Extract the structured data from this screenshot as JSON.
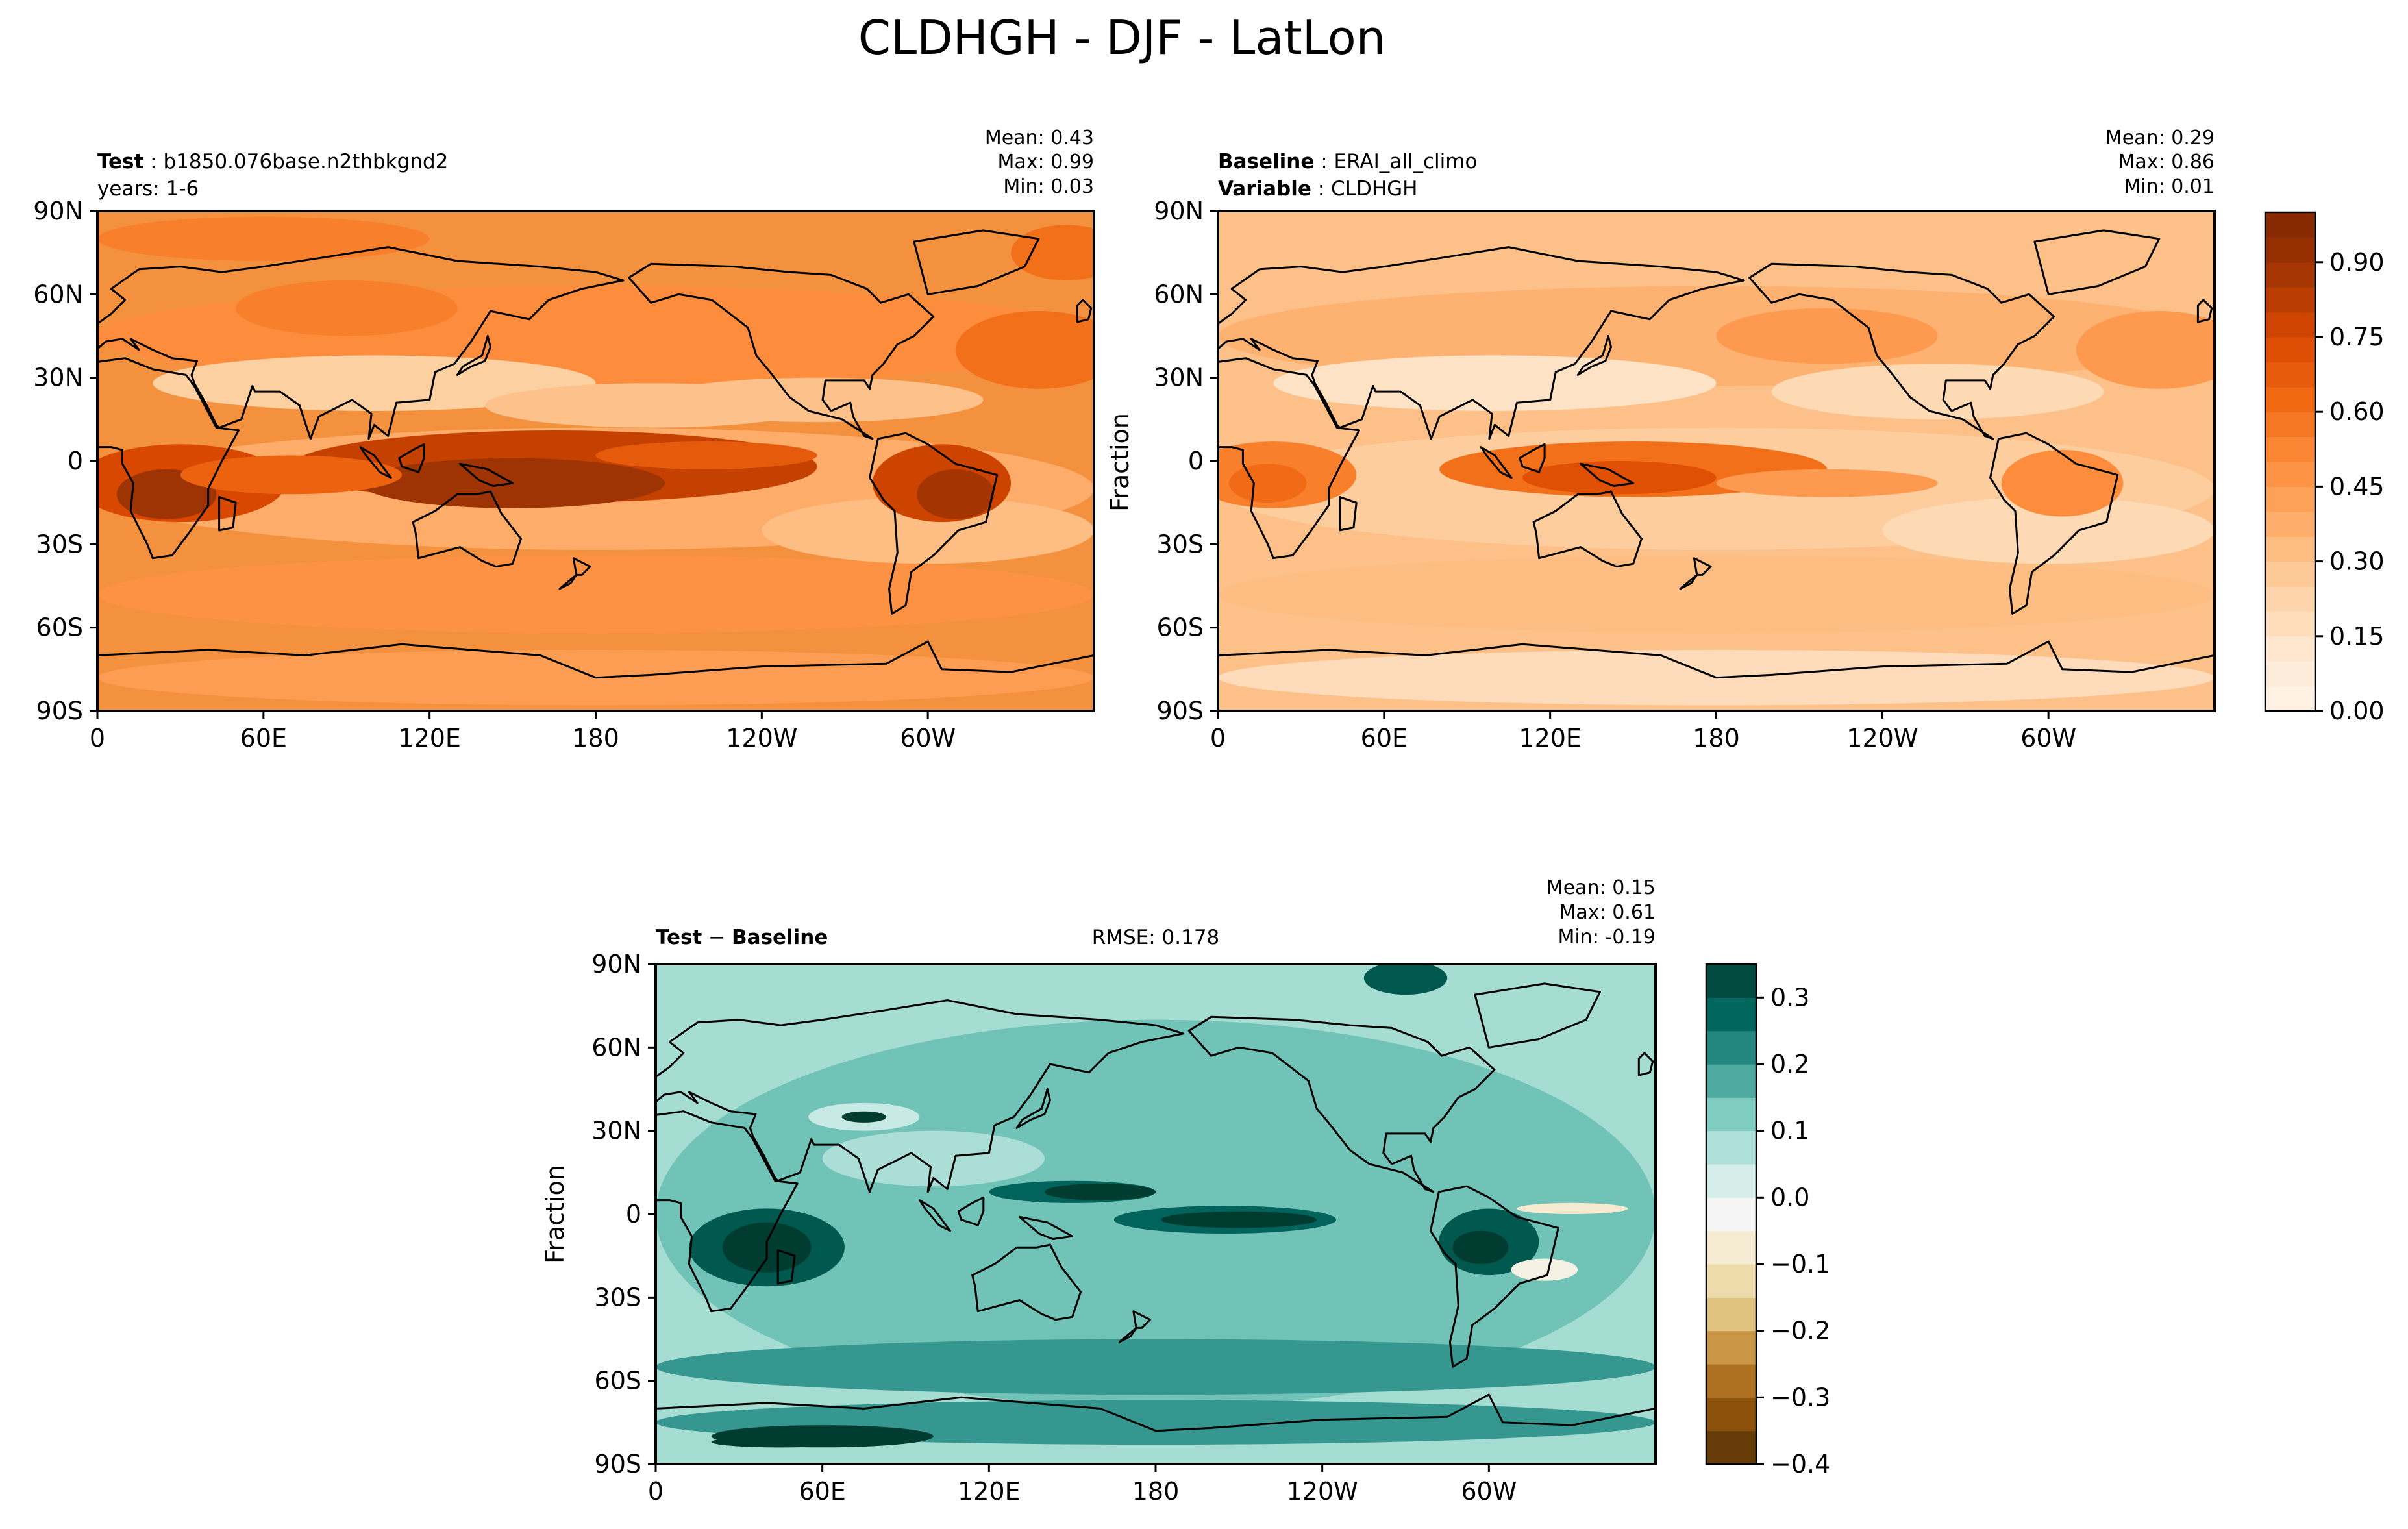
{
  "figure_title": "CLDHGH - DJF - LatLon",
  "colors": {
    "seq_scale": [
      "#fff5eb",
      "#fee6ce",
      "#fdd0a2",
      "#fdae6b",
      "#fd8d3c",
      "#f16913",
      "#d94801",
      "#a63603",
      "#7f2704"
    ],
    "div_scale": [
      "#543005",
      "#8c510a",
      "#bf812d",
      "#dfc27d",
      "#f6e8c3",
      "#f5f5f5",
      "#c7eae5",
      "#80cdc1",
      "#35978f",
      "#01665e",
      "#003c30"
    ]
  },
  "chart_data": [
    {
      "id": "test",
      "type": "heatmap",
      "header": {
        "label": "Test",
        "value": "b1850.076base.n2thbkgnd2",
        "line2": "years: 1-6"
      },
      "stats": {
        "mean": "Mean:  0.43",
        "max": "Max:  0.99",
        "min": "Min:  0.03"
      },
      "ylabel": "",
      "x_ticks": [
        "0",
        "60E",
        "120E",
        "180",
        "120W",
        "60W"
      ],
      "y_ticks": [
        "90N",
        "60N",
        "30N",
        "0",
        "30S",
        "60S",
        "90S"
      ],
      "value_range": [
        0.0,
        1.0
      ],
      "itcz_strength": 1.0
    },
    {
      "id": "baseline",
      "type": "heatmap",
      "header": {
        "label": "Baseline",
        "value": "ERAI_all_climo",
        "label2": "Variable",
        "value2": "CLDHGH"
      },
      "stats": {
        "mean": "Mean:  0.29",
        "max": "Max:  0.86",
        "min": "Min:  0.01"
      },
      "ylabel": "Fraction",
      "x_ticks": [
        "0",
        "60E",
        "120E",
        "180",
        "120W",
        "60W"
      ],
      "y_ticks": [
        "90N",
        "60N",
        "30N",
        "0",
        "30S",
        "60S",
        "90S"
      ],
      "colorbar": {
        "ticks": [
          "0.00",
          "0.15",
          "0.30",
          "0.45",
          "0.60",
          "0.75",
          "0.90"
        ],
        "range": [
          0.0,
          1.0
        ]
      },
      "itcz_strength": 0.7
    },
    {
      "id": "diff",
      "type": "heatmap",
      "header": {
        "label": "Test",
        "sep": " − ",
        "label2": "Baseline"
      },
      "rmse": "RMSE: 0.178",
      "stats": {
        "mean": "Mean:  0.15",
        "max": "Max:  0.61",
        "min": "Min: -0.19"
      },
      "ylabel": "Fraction",
      "x_ticks": [
        "0",
        "60E",
        "120E",
        "180",
        "120W",
        "60W"
      ],
      "y_ticks": [
        "90N",
        "60N",
        "30N",
        "0",
        "30S",
        "60S",
        "90S"
      ],
      "colorbar": {
        "ticks": [
          "0.3",
          "0.2",
          "0.1",
          "0.0",
          "−0.1",
          "−0.2",
          "−0.3",
          "−0.4"
        ],
        "range": [
          -0.4,
          0.35
        ]
      }
    }
  ]
}
